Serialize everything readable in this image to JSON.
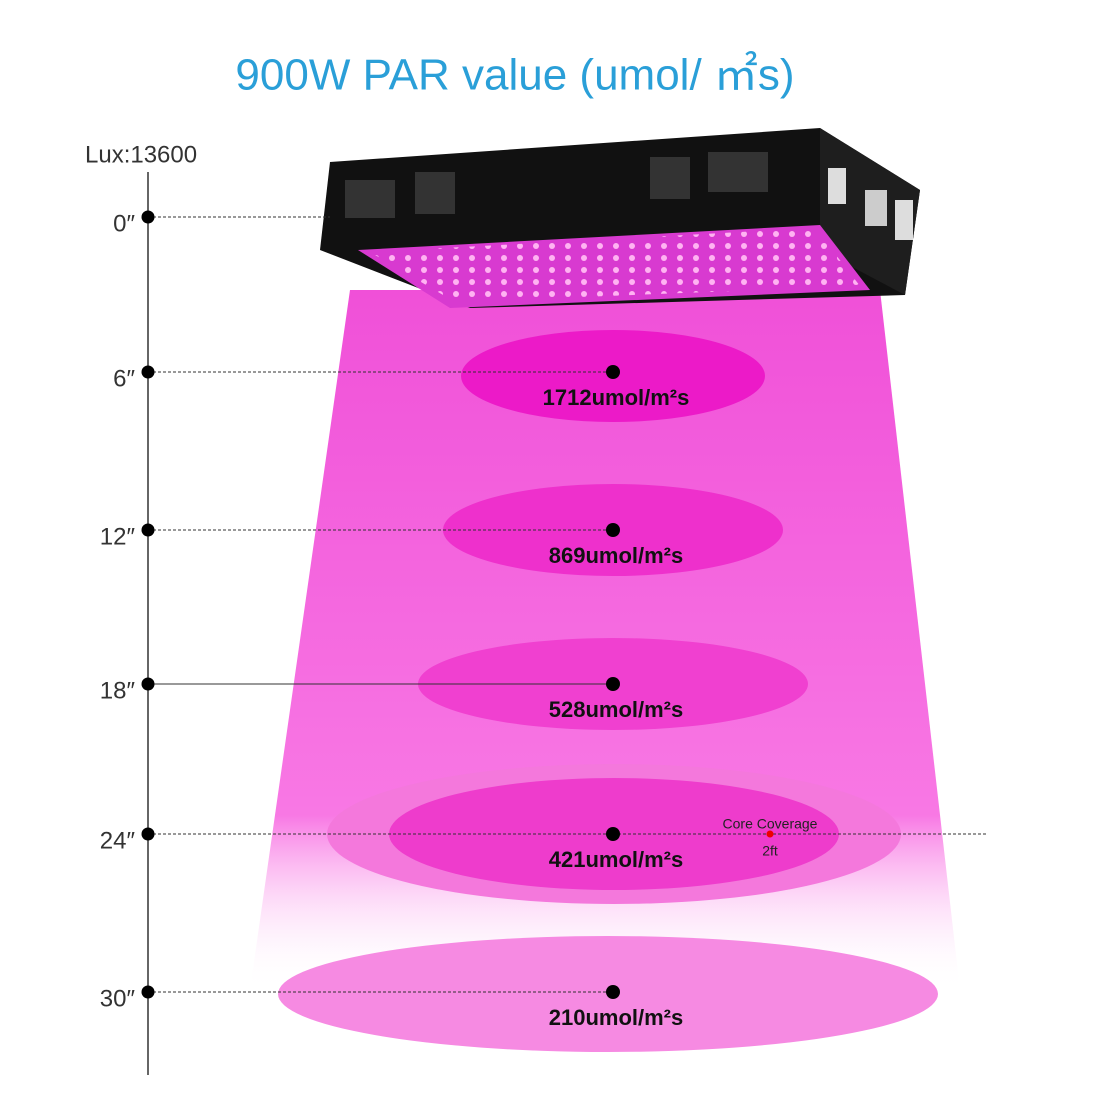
{
  "title": "900W PAR value (umol/ ㎡s)",
  "lux": "Lux:13600",
  "levels": [
    {
      "distance": "0″"
    },
    {
      "distance": "6″",
      "reading": "1712umol/m²s"
    },
    {
      "distance": "12″",
      "reading": "869umol/m²s"
    },
    {
      "distance": "18″",
      "reading": "528umol/m²s"
    },
    {
      "distance": "24″",
      "reading": "421umol/m²s"
    },
    {
      "distance": "30″",
      "reading": "210umol/m²s"
    }
  ],
  "core_coverage": {
    "label": "Core Coverage",
    "size": "2ft"
  }
}
